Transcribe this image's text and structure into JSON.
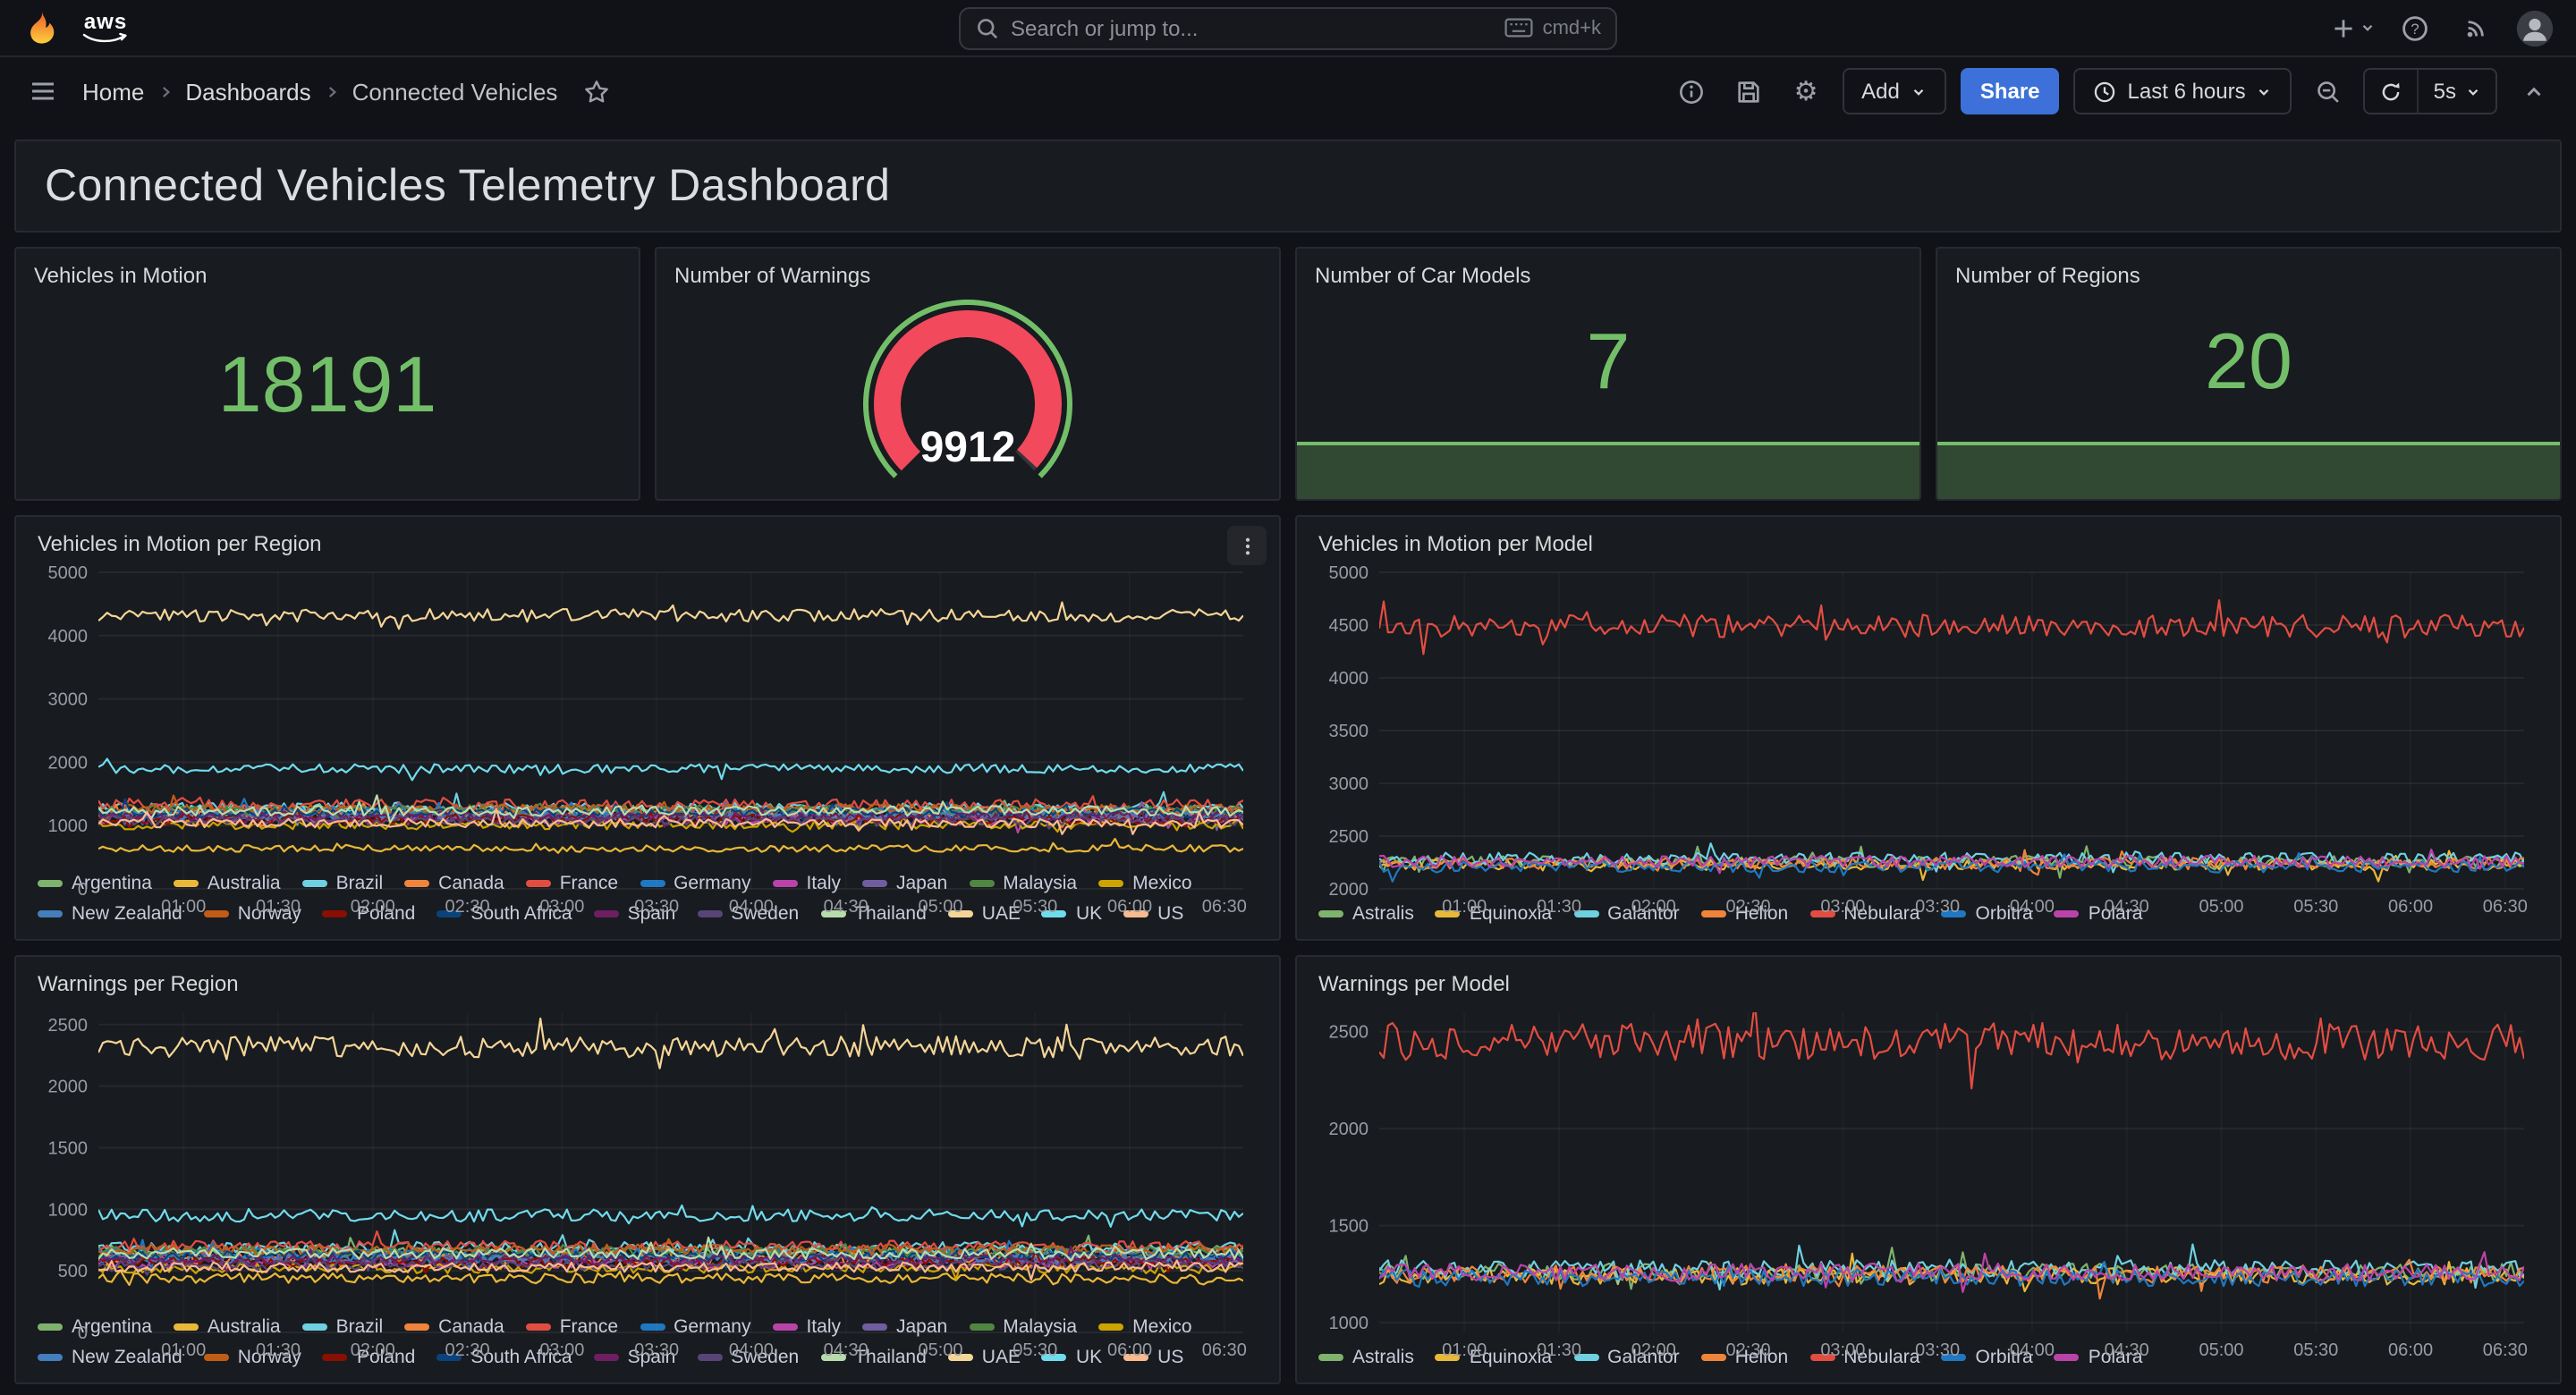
{
  "topnav": {
    "brand": "aws",
    "search_placeholder": "Search or jump to...",
    "search_shortcut": "cmd+k"
  },
  "breadcrumb": {
    "items": [
      "Home",
      "Dashboards",
      "Connected Vehicles"
    ]
  },
  "toolbar": {
    "add_label": "Add",
    "share_label": "Share",
    "time_range": "Last 6 hours",
    "refresh_interval": "5s"
  },
  "page": {
    "title": "Connected Vehicles Telemetry Dashboard"
  },
  "icons": {
    "gear": "⚙"
  },
  "colors": {
    "accent_green": "#73BF69",
    "gauge_red": "#F2495C",
    "share_blue": "#3D71D9"
  },
  "stats": [
    {
      "title": "Vehicles in Motion",
      "value": "18191"
    },
    {
      "title": "Number of Warnings",
      "value": "9912",
      "gauge": {
        "min": 0,
        "max": 10000,
        "arc_color": "#F2495C",
        "track_color": "#73BF69",
        "rest_color": "#33363c"
      }
    },
    {
      "title": "Number of Car Models",
      "value": "7"
    },
    {
      "title": "Number of Regions",
      "value": "20"
    }
  ],
  "chart_data": [
    {
      "type": "line",
      "title": "Vehicles in Motion per Region",
      "x_ticks": [
        "01:00",
        "01:30",
        "02:00",
        "02:30",
        "03:00",
        "03:30",
        "04:00",
        "04:30",
        "05:00",
        "05:30",
        "06:00",
        "06:30"
      ],
      "x_range": [
        0.55,
        6.6
      ],
      "y_ticks": [
        0,
        1000,
        2000,
        3000,
        4000,
        5000
      ],
      "y_range": [
        0,
        5000
      ],
      "grid": true,
      "legend_position": "bottom",
      "series": [
        {
          "name": "Argentina",
          "color": "#7EB26D",
          "mean": 1230,
          "jitter": 85
        },
        {
          "name": "Australia",
          "color": "#EAB839",
          "mean": 640,
          "jitter": 55
        },
        {
          "name": "Brazil",
          "color": "#6ED0E0",
          "mean": 1280,
          "jitter": 85
        },
        {
          "name": "Canada",
          "color": "#EF843C",
          "mean": 1180,
          "jitter": 80
        },
        {
          "name": "France",
          "color": "#E24D42",
          "mean": 1330,
          "jitter": 85
        },
        {
          "name": "Germany",
          "color": "#1F78C1",
          "mean": 1210,
          "jitter": 80
        },
        {
          "name": "Italy",
          "color": "#BA43A9",
          "mean": 1090,
          "jitter": 75
        },
        {
          "name": "Japan",
          "color": "#705DA0",
          "mean": 1150,
          "jitter": 75
        },
        {
          "name": "Malaysia",
          "color": "#508642",
          "mean": 1240,
          "jitter": 80
        },
        {
          "name": "Mexico",
          "color": "#CCA300",
          "mean": 1010,
          "jitter": 70
        },
        {
          "name": "New Zealand",
          "color": "#447EBC",
          "mean": 1170,
          "jitter": 75
        },
        {
          "name": "Norway",
          "color": "#C15C17",
          "mean": 1260,
          "jitter": 80
        },
        {
          "name": "Poland",
          "color": "#890F02",
          "mean": 1100,
          "jitter": 75
        },
        {
          "name": "South Africa",
          "color": "#0A437C",
          "mean": 1200,
          "jitter": 75
        },
        {
          "name": "Spain",
          "color": "#6D1F62",
          "mean": 1140,
          "jitter": 75
        },
        {
          "name": "Sweden",
          "color": "#584477",
          "mean": 1080,
          "jitter": 70
        },
        {
          "name": "Thailand",
          "color": "#B7DBAB",
          "mean": 1230,
          "jitter": 80
        },
        {
          "name": "UAE",
          "color": "#F4D598",
          "mean": 4320,
          "jitter": 100
        },
        {
          "name": "UK",
          "color": "#70DBED",
          "mean": 1900,
          "jitter": 70
        },
        {
          "name": "US",
          "color": "#F9BA8F",
          "mean": 1040,
          "jitter": 70
        }
      ]
    },
    {
      "type": "line",
      "title": "Vehicles in Motion per Model",
      "x_ticks": [
        "01:00",
        "01:30",
        "02:00",
        "02:30",
        "03:00",
        "03:30",
        "04:00",
        "04:30",
        "05:00",
        "05:30",
        "06:00",
        "06:30"
      ],
      "x_range": [
        0.55,
        6.6
      ],
      "y_ticks": [
        2000,
        2500,
        3000,
        3500,
        4000,
        4500,
        5000
      ],
      "y_range": [
        2000,
        5000
      ],
      "grid": true,
      "legend_position": "bottom",
      "series": [
        {
          "name": "Astralis",
          "color": "#7EB26D",
          "mean": 2260,
          "jitter": 55
        },
        {
          "name": "Equinoxia",
          "color": "#EAB839",
          "mean": 2230,
          "jitter": 55
        },
        {
          "name": "Galantor",
          "color": "#6ED0E0",
          "mean": 2290,
          "jitter": 55
        },
        {
          "name": "Helion",
          "color": "#EF843C",
          "mean": 2240,
          "jitter": 55
        },
        {
          "name": "Nebulara",
          "color": "#E24D42",
          "mean": 4490,
          "jitter": 110
        },
        {
          "name": "Orbitra",
          "color": "#1F78C1",
          "mean": 2210,
          "jitter": 55
        },
        {
          "name": "Polara",
          "color": "#BA43A9",
          "mean": 2260,
          "jitter": 55
        }
      ]
    },
    {
      "type": "line",
      "title": "Warnings per Region",
      "x_ticks": [
        "01:00",
        "01:30",
        "02:00",
        "02:30",
        "03:00",
        "03:30",
        "04:00",
        "04:30",
        "05:00",
        "05:30",
        "06:00",
        "06:30"
      ],
      "x_range": [
        0.55,
        6.6
      ],
      "y_ticks": [
        0,
        500,
        1000,
        1500,
        2000,
        2500
      ],
      "y_range": [
        0,
        2600
      ],
      "grid": true,
      "legend_position": "bottom",
      "series": [
        {
          "name": "Argentina",
          "color": "#7EB26D",
          "mean": 660,
          "jitter": 45
        },
        {
          "name": "Australia",
          "color": "#EAB839",
          "mean": 440,
          "jitter": 40
        },
        {
          "name": "Brazil",
          "color": "#6ED0E0",
          "mean": 690,
          "jitter": 45
        },
        {
          "name": "Canada",
          "color": "#EF843C",
          "mean": 610,
          "jitter": 45
        },
        {
          "name": "France",
          "color": "#E24D42",
          "mean": 700,
          "jitter": 45
        },
        {
          "name": "Germany",
          "color": "#1F78C1",
          "mean": 640,
          "jitter": 45
        },
        {
          "name": "Italy",
          "color": "#BA43A9",
          "mean": 560,
          "jitter": 40
        },
        {
          "name": "Japan",
          "color": "#705DA0",
          "mean": 600,
          "jitter": 40
        },
        {
          "name": "Malaysia",
          "color": "#508642",
          "mean": 650,
          "jitter": 45
        },
        {
          "name": "Mexico",
          "color": "#CCA300",
          "mean": 520,
          "jitter": 40
        },
        {
          "name": "New Zealand",
          "color": "#447EBC",
          "mean": 600,
          "jitter": 40
        },
        {
          "name": "Norway",
          "color": "#C15C17",
          "mean": 670,
          "jitter": 45
        },
        {
          "name": "Poland",
          "color": "#890F02",
          "mean": 570,
          "jitter": 40
        },
        {
          "name": "South Africa",
          "color": "#0A437C",
          "mean": 620,
          "jitter": 40
        },
        {
          "name": "Spain",
          "color": "#6D1F62",
          "mean": 590,
          "jitter": 40
        },
        {
          "name": "Sweden",
          "color": "#584477",
          "mean": 550,
          "jitter": 40
        },
        {
          "name": "Thailand",
          "color": "#B7DBAB",
          "mean": 640,
          "jitter": 45
        },
        {
          "name": "UAE",
          "color": "#F4D598",
          "mean": 2320,
          "jitter": 85
        },
        {
          "name": "UK",
          "color": "#70DBED",
          "mean": 950,
          "jitter": 50
        },
        {
          "name": "US",
          "color": "#F9BA8F",
          "mean": 530,
          "jitter": 40
        }
      ]
    },
    {
      "type": "line",
      "title": "Warnings per Model",
      "x_ticks": [
        "01:00",
        "01:30",
        "02:00",
        "02:30",
        "03:00",
        "03:30",
        "04:00",
        "04:30",
        "05:00",
        "05:30",
        "06:00",
        "06:30"
      ],
      "x_range": [
        0.55,
        6.6
      ],
      "y_ticks": [
        1000,
        1500,
        2000,
        2500
      ],
      "y_range": [
        950,
        2600
      ],
      "grid": true,
      "legend_position": "bottom",
      "series": [
        {
          "name": "Astralis",
          "color": "#7EB26D",
          "mean": 1260,
          "jitter": 45
        },
        {
          "name": "Equinoxia",
          "color": "#EAB839",
          "mean": 1240,
          "jitter": 45
        },
        {
          "name": "Galantor",
          "color": "#6ED0E0",
          "mean": 1280,
          "jitter": 45
        },
        {
          "name": "Helion",
          "color": "#EF843C",
          "mean": 1250,
          "jitter": 45
        },
        {
          "name": "Nebulara",
          "color": "#E24D42",
          "mean": 2450,
          "jitter": 95
        },
        {
          "name": "Orbitra",
          "color": "#1F78C1",
          "mean": 1230,
          "jitter": 45
        },
        {
          "name": "Polara",
          "color": "#BA43A9",
          "mean": 1260,
          "jitter": 45
        }
      ]
    }
  ]
}
